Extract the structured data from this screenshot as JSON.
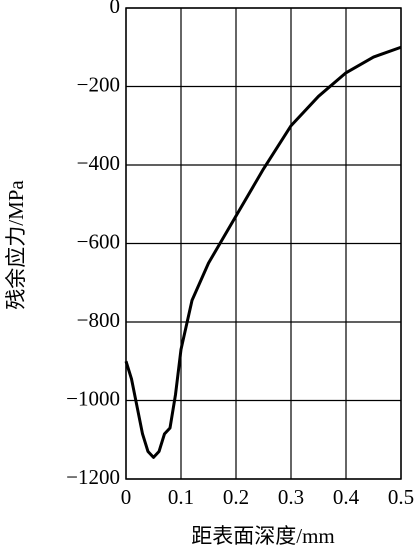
{
  "chart_data": {
    "type": "line",
    "xlabel": "距表面深度/mm",
    "ylabel": "残余应力/MPa",
    "x": [
      0,
      0.01,
      0.02,
      0.03,
      0.04,
      0.05,
      0.06,
      0.07,
      0.08,
      0.09,
      0.1,
      0.12,
      0.15,
      0.2,
      0.25,
      0.3,
      0.35,
      0.4,
      0.45,
      0.5
    ],
    "series": [
      {
        "color": "#000000",
        "values": [
          -900,
          -945,
          -1015,
          -1085,
          -1130,
          -1145,
          -1130,
          -1085,
          -1070,
          -985,
          -870,
          -745,
          -650,
          -530,
          -410,
          -300,
          -225,
          -165,
          -125,
          -100
        ]
      }
    ],
    "xlim": [
      0,
      0.5
    ],
    "ylim": [
      -1200,
      0
    ],
    "xticks": [
      0,
      0.1,
      0.2,
      0.3,
      0.4,
      0.5
    ],
    "yticks": [
      {
        "value": 0,
        "label": "0"
      },
      {
        "value": -200,
        "label": "−200"
      },
      {
        "value": -400,
        "label": "−400"
      },
      {
        "value": -600,
        "label": "−600"
      },
      {
        "value": -800,
        "label": "−800"
      },
      {
        "value": -1000,
        "label": "−1000"
      },
      {
        "value": -1200,
        "label": "−1200"
      }
    ],
    "grid": true
  }
}
